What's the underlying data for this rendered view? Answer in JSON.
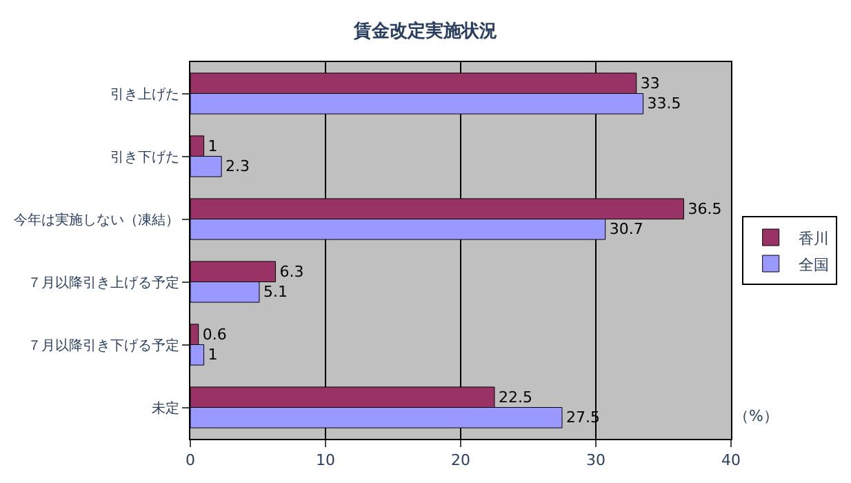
{
  "chart_data": {
    "type": "bar",
    "orientation": "horizontal",
    "title": "賃金改定実施状況",
    "categories": [
      "引き上げた",
      "引き下げた",
      "今年は実施しない（凍結）",
      "７月以降引き上げる予定",
      "７月以降引き下げる予定",
      "未定"
    ],
    "series": [
      {
        "name": "香川",
        "color": "#993366",
        "values": [
          33,
          1,
          36.5,
          6.3,
          0.6,
          22.5
        ]
      },
      {
        "name": "全国",
        "color": "#9999ff",
        "values": [
          33.5,
          2.3,
          30.7,
          5.1,
          1,
          27.5
        ]
      }
    ],
    "xlim": [
      0,
      40
    ],
    "xticks": [
      0,
      10,
      20,
      30,
      40
    ],
    "grid": "x",
    "legend": "right",
    "data_labels": true,
    "annotations": [
      "（%）"
    ]
  }
}
